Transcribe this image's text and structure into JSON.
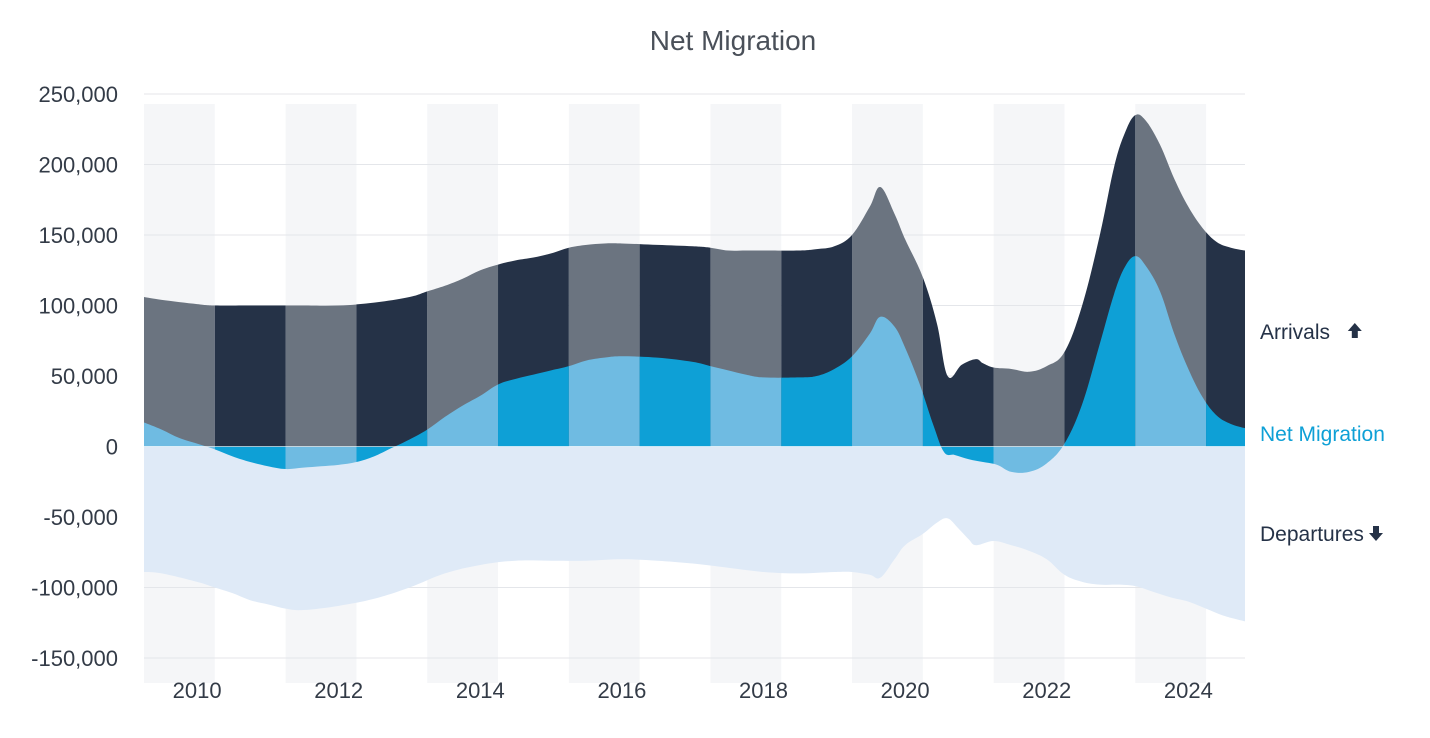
{
  "chart_data": {
    "type": "area",
    "title": "Net Migration",
    "xlabel": "",
    "ylabel": "",
    "ylim": [
      -150000,
      250000
    ],
    "xlim": [
      2009.25,
      2024.8
    ],
    "y_ticks": [
      250000,
      200000,
      150000,
      100000,
      50000,
      0,
      -50000,
      -100000,
      -150000
    ],
    "y_tick_labels": [
      "250,000",
      "200,000",
      "150,000",
      "100,000",
      "50,000",
      "0",
      "-50,000",
      "-100,000",
      "-150,000"
    ],
    "x_ticks": [
      2010,
      2012,
      2014,
      2016,
      2018,
      2020,
      2022,
      2024
    ],
    "x_tick_labels": [
      "2010",
      "2012",
      "2014",
      "2016",
      "2018",
      "2020",
      "2022",
      "2024"
    ],
    "legend_placement": "right",
    "colors": {
      "arrivals_dark": "#253247",
      "arrivals_light": "#6b7480",
      "net_dark": "#0ea0d6",
      "net_light": "#6fbbe2",
      "departures": "#dfeaf7",
      "departures_line_light": "#f7f8fa",
      "band": "#f5f6f8",
      "grid": "#e4e6ea",
      "title_text": "#4a5059",
      "label_text": "#333b47",
      "legend_arrivals": "#253247",
      "legend_net": "#0ea0d6",
      "legend_departures": "#253247"
    },
    "series": [
      {
        "name": "Arrivals",
        "legend_label": "Arrivals",
        "legend_icon": "arrow-up-icon",
        "x": [
          2009.25,
          2009.5,
          2010.0,
          2010.25,
          2010.75,
          2011.0,
          2011.25,
          2011.5,
          2012.0,
          2012.5,
          2013.0,
          2013.25,
          2013.5,
          2013.75,
          2014.0,
          2014.25,
          2014.5,
          2014.75,
          2015.0,
          2015.25,
          2015.5,
          2015.75,
          2016.0,
          2016.5,
          2017.0,
          2017.25,
          2017.5,
          2017.75,
          2018.0,
          2018.5,
          2018.75,
          2019.0,
          2019.25,
          2019.5,
          2019.65,
          2019.85,
          2020.0,
          2020.25,
          2020.45,
          2020.6,
          2020.8,
          2021.0,
          2021.1,
          2021.25,
          2021.5,
          2021.75,
          2022.0,
          2022.25,
          2022.5,
          2022.75,
          2022.95,
          2023.1,
          2023.25,
          2023.4,
          2023.6,
          2023.8,
          2024.0,
          2024.2,
          2024.4,
          2024.6,
          2024.8
        ],
        "values": [
          106000,
          104000,
          101000,
          100000,
          100000,
          100000,
          100000,
          100000,
          100000,
          102000,
          106000,
          110000,
          114000,
          119000,
          125000,
          129000,
          132000,
          134000,
          137000,
          141000,
          143000,
          144000,
          144000,
          143000,
          142000,
          141000,
          139000,
          139000,
          139000,
          139000,
          140000,
          142000,
          150000,
          170000,
          184000,
          165000,
          147000,
          120000,
          87000,
          50000,
          58000,
          62000,
          59000,
          56000,
          55000,
          53000,
          57000,
          67000,
          100000,
          150000,
          198000,
          222000,
          235000,
          231000,
          214000,
          190000,
          170000,
          155000,
          145000,
          141000,
          139000
        ]
      },
      {
        "name": "Net Migration",
        "legend_label": "Net Migration",
        "x": [
          2009.25,
          2009.5,
          2009.75,
          2010.0,
          2010.25,
          2010.5,
          2010.75,
          2011.0,
          2011.25,
          2011.5,
          2011.75,
          2012.0,
          2012.25,
          2012.5,
          2012.75,
          2013.0,
          2013.25,
          2013.5,
          2013.75,
          2014.0,
          2014.25,
          2014.5,
          2014.75,
          2015.0,
          2015.25,
          2015.5,
          2015.75,
          2016.0,
          2016.5,
          2017.0,
          2017.25,
          2017.5,
          2017.75,
          2018.0,
          2018.5,
          2018.75,
          2019.0,
          2019.25,
          2019.5,
          2019.65,
          2019.85,
          2020.0,
          2020.2,
          2020.4,
          2020.55,
          2020.7,
          2020.9,
          2021.1,
          2021.3,
          2021.5,
          2021.75,
          2022.0,
          2022.25,
          2022.5,
          2022.75,
          2022.95,
          2023.1,
          2023.25,
          2023.4,
          2023.6,
          2023.8,
          2024.0,
          2024.2,
          2024.4,
          2024.6,
          2024.8
        ],
        "values": [
          17000,
          12000,
          6000,
          2000,
          -2000,
          -7000,
          -11000,
          -14000,
          -16000,
          -15000,
          -14000,
          -13000,
          -11000,
          -7000,
          -1000,
          5000,
          12000,
          21000,
          29000,
          36000,
          44000,
          48000,
          51000,
          54000,
          57000,
          61000,
          63000,
          64000,
          63000,
          60000,
          57000,
          54000,
          51000,
          49000,
          49000,
          50000,
          55000,
          64000,
          80000,
          92000,
          85000,
          70000,
          45000,
          15000,
          -4000,
          -6000,
          -9000,
          -11000,
          -13000,
          -18000,
          -18000,
          -12000,
          2000,
          30000,
          73000,
          108000,
          127000,
          135000,
          128000,
          110000,
          80000,
          55000,
          35000,
          22000,
          16000,
          13000
        ]
      },
      {
        "name": "Departures",
        "legend_label": "Departures",
        "legend_icon": "arrow-down-icon",
        "x": [
          2009.25,
          2009.5,
          2010.0,
          2010.25,
          2010.5,
          2010.75,
          2011.0,
          2011.25,
          2011.5,
          2012.0,
          2012.5,
          2013.0,
          2013.5,
          2014.0,
          2014.5,
          2015.0,
          2015.5,
          2016.0,
          2016.5,
          2017.0,
          2017.5,
          2018.0,
          2018.5,
          2019.0,
          2019.25,
          2019.5,
          2019.65,
          2019.85,
          2020.0,
          2020.25,
          2020.45,
          2020.6,
          2020.75,
          2020.9,
          2021.0,
          2021.25,
          2021.5,
          2021.75,
          2022.0,
          2022.25,
          2022.5,
          2022.75,
          2023.0,
          2023.25,
          2023.5,
          2023.75,
          2024.0,
          2024.25,
          2024.5,
          2024.8
        ],
        "values": [
          -89000,
          -90000,
          -96000,
          -100000,
          -104000,
          -109000,
          -112000,
          -115000,
          -116000,
          -113000,
          -108000,
          -100000,
          -90000,
          -84000,
          -81000,
          -81000,
          -81000,
          -80000,
          -81000,
          -83000,
          -86000,
          -89000,
          -90000,
          -89000,
          -89000,
          -91000,
          -93000,
          -80000,
          -70000,
          -62000,
          -54000,
          -51000,
          -58000,
          -66000,
          -70000,
          -67000,
          -70000,
          -74000,
          -80000,
          -91000,
          -96000,
          -98000,
          -98000,
          -99000,
          -103000,
          -107000,
          -110000,
          -115000,
          -120000,
          -124000
        ]
      }
    ]
  }
}
